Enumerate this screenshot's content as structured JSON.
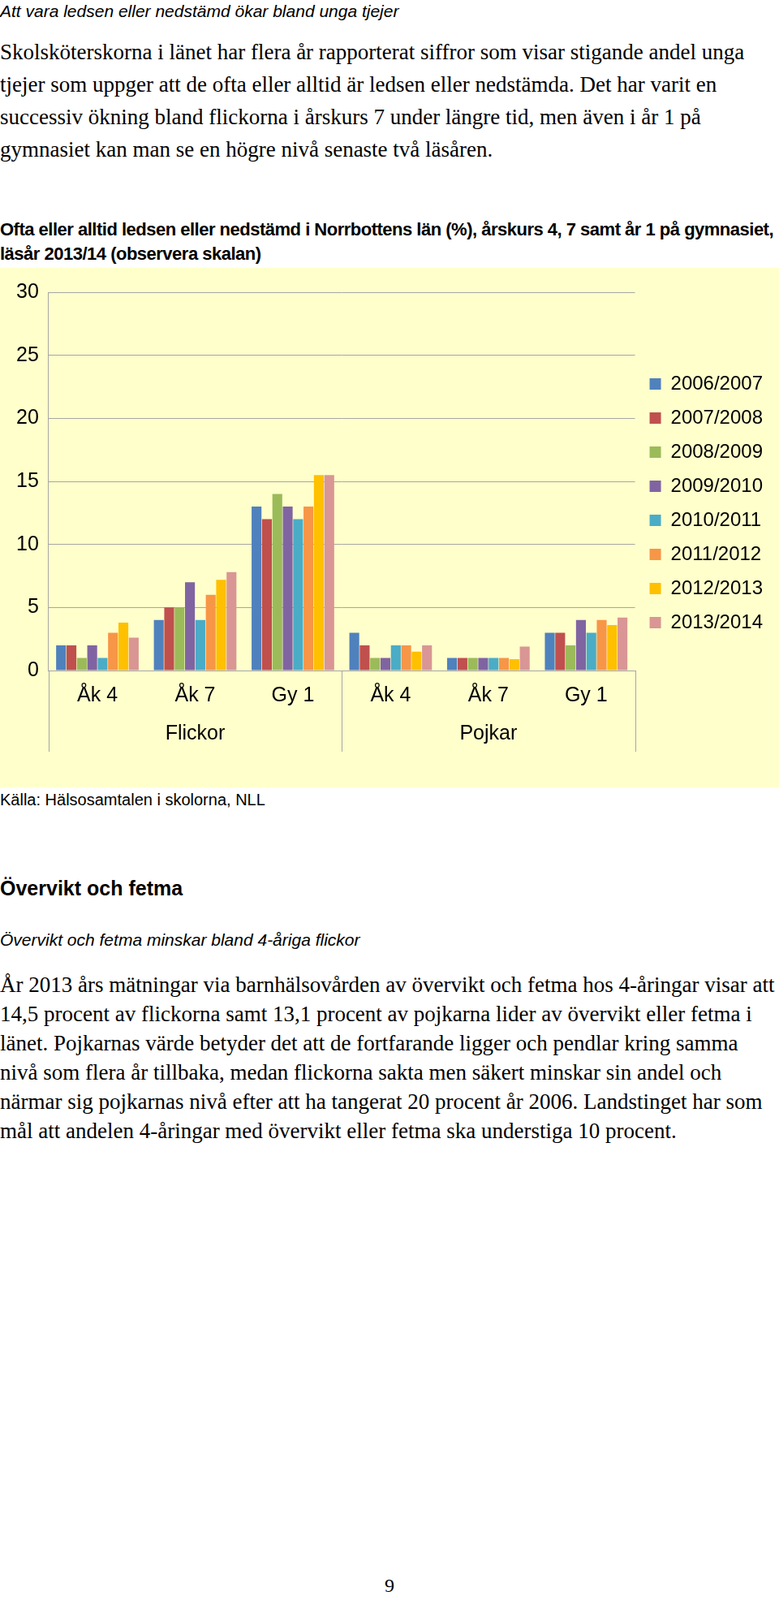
{
  "header": {
    "subtitle": "Att vara ledsen eller nedstämd ökar bland unga tjejer",
    "paragraph": "Skolsköterskorna i länet har flera år rapporterat siffror som visar stigande andel unga tjejer som uppger att de ofta eller alltid är ledsen eller nedstämda. Det har varit en successiv ökning bland flickorna i årskurs 7 under längre tid, men även i år 1 på gymnasiet kan man se en högre nivå senaste två läsåren."
  },
  "chart_data": {
    "type": "bar",
    "title": "Ofta eller alltid ledsen eller nedstämd i Norrbottens län (%), årskurs 4, 7 samt år 1 på gymnasiet, läsår 2013/14 (observera skalan)",
    "categories": [
      "Åk 4",
      "Åk 7",
      "Gy 1",
      "Åk 4",
      "Åk 7",
      "Gy 1"
    ],
    "groups": [
      {
        "label": "Flickor",
        "size": 3
      },
      {
        "label": "Pojkar",
        "size": 3
      }
    ],
    "series": [
      {
        "name": "2006/2007",
        "color": "#4F81BD",
        "values": [
          2,
          4,
          13,
          3,
          1,
          3
        ]
      },
      {
        "name": "2007/2008",
        "color": "#C0504D",
        "values": [
          2,
          5,
          12,
          2,
          1,
          3
        ]
      },
      {
        "name": "2008/2009",
        "color": "#9BBB59",
        "values": [
          1,
          5,
          14,
          1,
          1,
          2
        ]
      },
      {
        "name": "2009/2010",
        "color": "#8064A2",
        "values": [
          2,
          7,
          13,
          1,
          1,
          4
        ]
      },
      {
        "name": "2010/2011",
        "color": "#4BACC6",
        "values": [
          1,
          4,
          12,
          2,
          1,
          3
        ]
      },
      {
        "name": "2011/2012",
        "color": "#F79646",
        "values": [
          3,
          6,
          13,
          2,
          1,
          4
        ]
      },
      {
        "name": "2012/2013",
        "color": "#FFC000",
        "values": [
          3.8,
          7.2,
          15.5,
          1.5,
          0.9,
          3.6
        ]
      },
      {
        "name": "2013/2014",
        "color": "#D99694",
        "values": [
          2.6,
          7.8,
          15.5,
          2,
          1.9,
          4.2
        ]
      }
    ],
    "ylim": [
      0,
      30
    ],
    "yticks": [
      0,
      5,
      10,
      15,
      20,
      25,
      30
    ],
    "grid": true,
    "legend": "right"
  },
  "source": "Källa: Hälsosamtalen i skolorna, NLL",
  "section2": {
    "heading": "Övervikt och fetma",
    "subtitle": "Övervikt och fetma minskar bland 4-åriga flickor",
    "paragraph": "År 2013 års mätningar via barnhälsovården av övervikt och fetma hos 4-åringar visar att 14,5 procent av flickorna samt 13,1 procent av pojkarna lider av övervikt eller fetma i länet. Pojkarnas värde betyder det att de fortfarande ligger och pendlar kring samma nivå som flera år tillbaka, medan flickorna sakta men säkert minskar sin andel och närmar sig pojkarnas nivå efter att ha tangerat 20 procent år 2006. Landstinget har som mål att andelen 4-åringar med övervikt eller fetma ska understiga 10 procent."
  },
  "page_number": "9"
}
